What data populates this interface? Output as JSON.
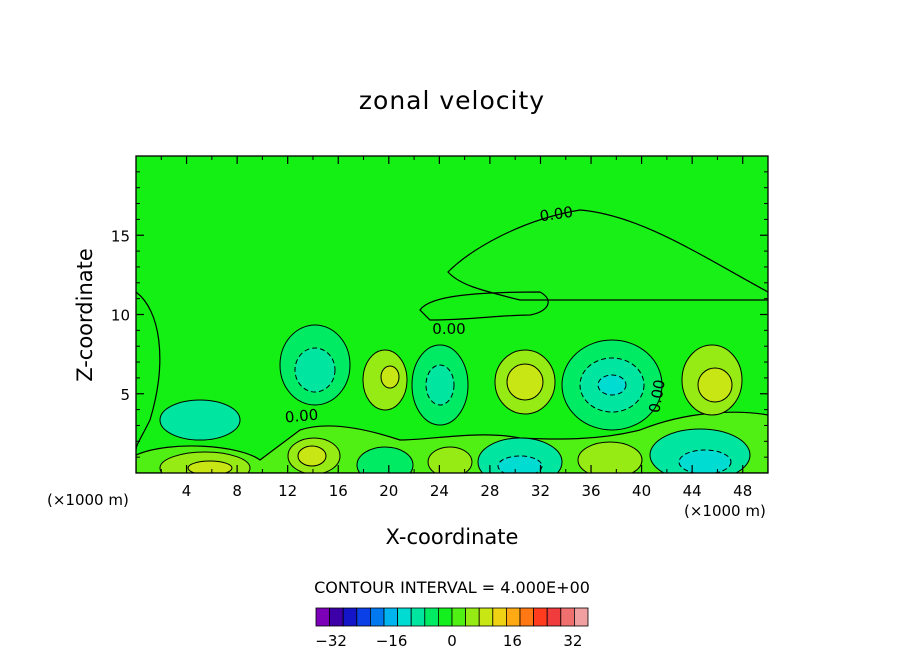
{
  "chart_data": {
    "type": "heatmap",
    "title": "zonal velocity",
    "xlabel": "X-coordinate",
    "ylabel": "Z-coordinate",
    "x_unit_label": "(×1000 m)",
    "xlim": [
      0,
      50
    ],
    "ylim": [
      0,
      20
    ],
    "xticks": [
      4,
      8,
      12,
      16,
      20,
      24,
      28,
      32,
      36,
      40,
      44,
      48
    ],
    "yticks": [
      5,
      10,
      15
    ],
    "contour_labels": [
      "0.00",
      "0.00",
      "0.00",
      "0.00"
    ],
    "contour_interval_text": "CONTOUR INTERVAL = 4.000E+00",
    "colorbar": {
      "min": -36,
      "max": 36,
      "step": 4,
      "tick_values": [
        -32,
        -16,
        0,
        16,
        32
      ],
      "tick_labels": [
        "−32",
        "−16",
        "0",
        "16",
        "32"
      ],
      "colors": [
        "#7b00b8",
        "#3d00a8",
        "#1414c8",
        "#0a40e6",
        "#0078f0",
        "#00b4f0",
        "#00dcd2",
        "#00e6a0",
        "#00eb64",
        "#14f01e",
        "#50f014",
        "#96eb14",
        "#c8e614",
        "#f0d214",
        "#ffaa14",
        "#ff7814",
        "#ff3c1e",
        "#f03c3c",
        "#f07070",
        "#f0a0a0"
      ]
    },
    "background_color": "#14f014"
  }
}
